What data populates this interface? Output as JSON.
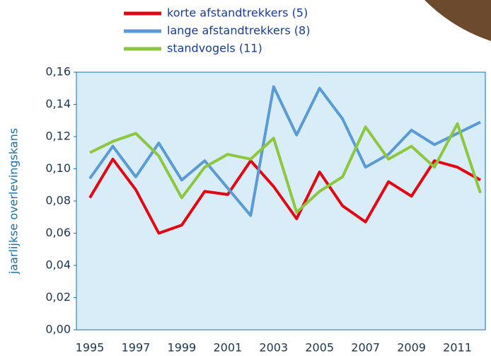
{
  "chart_data": {
    "type": "line",
    "y_label": "jaarlijkse overlevingskans",
    "categories": [
      "1995",
      null,
      "1997",
      null,
      "1999",
      null,
      "2001",
      null,
      "2003",
      null,
      "2005",
      null,
      "2007",
      null,
      "2009",
      null,
      "2011",
      null
    ],
    "series": [
      {
        "name": "korte afstandtrekkers (5)",
        "color": "#e30613",
        "values": [
          0.082,
          0.106,
          0.087,
          0.06,
          0.065,
          0.086,
          0.084,
          0.105,
          0.089,
          0.069,
          0.098,
          0.077,
          0.067,
          0.092,
          0.083,
          0.105,
          0.101,
          0.093
        ]
      },
      {
        "name": "lange afstandtrekkers (8)",
        "color": "#5b9bd5",
        "values": [
          0.094,
          0.114,
          0.095,
          0.116,
          0.093,
          0.105,
          0.088,
          0.071,
          0.151,
          0.121,
          0.15,
          0.131,
          0.101,
          0.109,
          0.124,
          0.115,
          0.122,
          0.129
        ]
      },
      {
        "name": "standvogels (11)",
        "color": "#8dc63f",
        "values": [
          0.11,
          0.117,
          0.122,
          0.108,
          0.082,
          0.101,
          0.109,
          0.106,
          0.119,
          0.073,
          0.086,
          0.095,
          0.126,
          0.106,
          0.114,
          0.101,
          0.128,
          0.085
        ]
      }
    ],
    "ylim": [
      0,
      0.16
    ],
    "yticks": [
      {
        "value": 0,
        "label": "0,00"
      },
      {
        "value": 0.02,
        "label": "0,02"
      },
      {
        "value": 0.04,
        "label": "0,04"
      },
      {
        "value": 0.06,
        "label": "0,06"
      },
      {
        "value": 0.08,
        "label": "0,08"
      },
      {
        "value": 0.1,
        "label": "0,10"
      },
      {
        "value": 0.12,
        "label": "0,12"
      },
      {
        "value": 0.14,
        "label": "0,14"
      },
      {
        "value": 0.16,
        "label": "0,16"
      }
    ],
    "grid": false,
    "background": "#d8edf8"
  }
}
